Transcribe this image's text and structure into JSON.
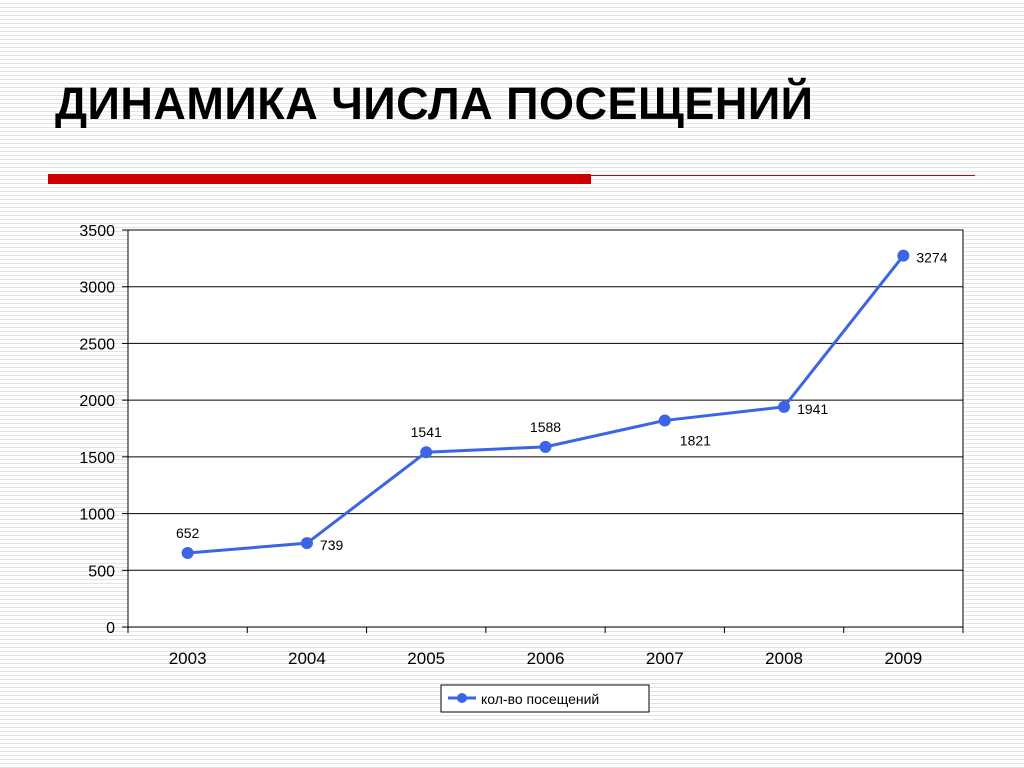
{
  "slide": {
    "title": "ДИНАМИКА ЧИСЛА ПОСЕЩЕНИЙ",
    "accent_color": "#cc0000"
  },
  "chart_data": {
    "type": "line",
    "title": "",
    "xlabel": "",
    "ylabel": "",
    "categories": [
      "2003",
      "2004",
      "2005",
      "2006",
      "2007",
      "2008",
      "2009"
    ],
    "series": [
      {
        "name": "кол-во посещений",
        "color": "#3c64e6",
        "values": [
          652,
          739,
          1541,
          1588,
          1821,
          1941,
          3274
        ]
      }
    ],
    "ylim": [
      0,
      3500
    ],
    "yticks": [
      0,
      500,
      1000,
      1500,
      2000,
      2500,
      3000,
      3500
    ],
    "grid": true,
    "legend": "bottom",
    "data_labels": true
  }
}
